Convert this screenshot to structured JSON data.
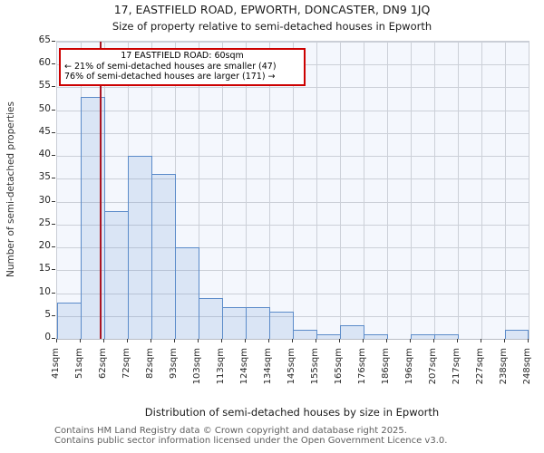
{
  "title": "17, EASTFIELD ROAD, EPWORTH, DONCASTER, DN9 1JQ",
  "subtitle": "Size of property relative to semi-detached houses in Epworth",
  "annotation": {
    "line1": "17 EASTFIELD ROAD: 60sqm",
    "line2": "← 21% of semi-detached houses are smaller (47)",
    "line3": "76% of semi-detached houses are larger (171) →"
  },
  "y_axis_label": "Number of semi-detached properties",
  "x_axis_label": "Distribution of semi-detached houses by size in Epworth",
  "footer": {
    "line1": "Contains HM Land Registry data © Crown copyright and database right 2025.",
    "line2": "Contains public sector information licensed under the Open Government Licence v3.0."
  },
  "chart_data": {
    "type": "bar",
    "title": "17, EASTFIELD ROAD, EPWORTH, DONCASTER, DN9 1JQ",
    "subtitle": "Size of property relative to semi-detached houses in Epworth",
    "xlabel": "Distribution of semi-detached houses by size in Epworth",
    "ylabel": "Number of semi-detached properties",
    "bin_edges_sqm": [
      41,
      51,
      62,
      72,
      82,
      93,
      103,
      113,
      124,
      134,
      145,
      155,
      165,
      176,
      186,
      196,
      207,
      217,
      227,
      238,
      248
    ],
    "x_tick_labels": [
      "41sqm",
      "51sqm",
      "62sqm",
      "72sqm",
      "82sqm",
      "93sqm",
      "103sqm",
      "113sqm",
      "124sqm",
      "134sqm",
      "145sqm",
      "155sqm",
      "165sqm",
      "176sqm",
      "186sqm",
      "196sqm",
      "207sqm",
      "217sqm",
      "227sqm",
      "238sqm",
      "248sqm"
    ],
    "values": [
      8,
      53,
      28,
      40,
      36,
      20,
      9,
      7,
      7,
      6,
      2,
      1,
      3,
      1,
      0,
      1,
      1,
      0,
      0,
      2
    ],
    "ylim": [
      0,
      65
    ],
    "y_ticks": [
      0,
      5,
      10,
      15,
      20,
      25,
      30,
      35,
      40,
      45,
      50,
      55,
      60,
      65
    ],
    "grid": true,
    "legend": "none",
    "marker": {
      "value_sqm": 60,
      "label": "17 EASTFIELD ROAD: 60sqm",
      "smaller_pct": 21,
      "smaller_count": 47,
      "larger_pct": 76,
      "larger_count": 171
    },
    "colors": {
      "bar_fill": "rgba(86,136,204,0.16)",
      "bar_border": "#5b8bc9",
      "marker_line": "#a91523",
      "annotation_border": "#cc0000",
      "grid_line": "#ccd0d8",
      "plot_bg": "#f4f7fd"
    }
  }
}
